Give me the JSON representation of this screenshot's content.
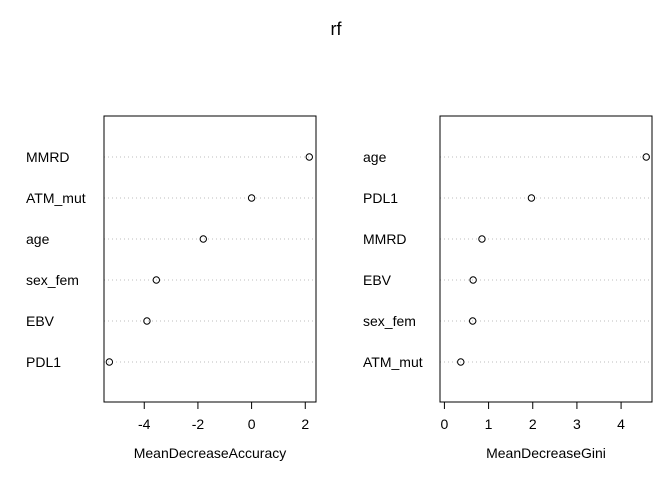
{
  "title": "rf",
  "chart_data": [
    {
      "type": "scatter",
      "subtype": "dotchart",
      "xlabel": "MeanDecreaseAccuracy",
      "ylabel": "",
      "categories": [
        "MMRD",
        "ATM_mut",
        "age",
        "sex_fem",
        "EBV",
        "PDL1"
      ],
      "values": [
        2.15,
        0.0,
        -1.8,
        -3.55,
        -3.9,
        -5.3
      ],
      "xlim": [
        -5.5,
        2.4
      ],
      "xticks": [
        -4,
        -2,
        0,
        2
      ],
      "xtick_labels": [
        "-4",
        "-2",
        "0",
        "2"
      ],
      "grid": "dotted horizontal lines per category"
    },
    {
      "type": "scatter",
      "subtype": "dotchart",
      "xlabel": "MeanDecreaseGini",
      "ylabel": "",
      "categories": [
        "age",
        "PDL1",
        "MMRD",
        "EBV",
        "sex_fem",
        "ATM_mut"
      ],
      "values": [
        4.57,
        1.97,
        0.85,
        0.65,
        0.64,
        0.37
      ],
      "xlim": [
        -0.1,
        4.7
      ],
      "xticks": [
        0,
        1,
        2,
        3,
        4
      ],
      "xtick_labels": [
        "0",
        "1",
        "2",
        "3",
        "4"
      ],
      "grid": "dotted horizontal lines per category"
    }
  ],
  "colors": {
    "axis": "#000000",
    "grid": "#bebebe",
    "point": "#000000"
  }
}
